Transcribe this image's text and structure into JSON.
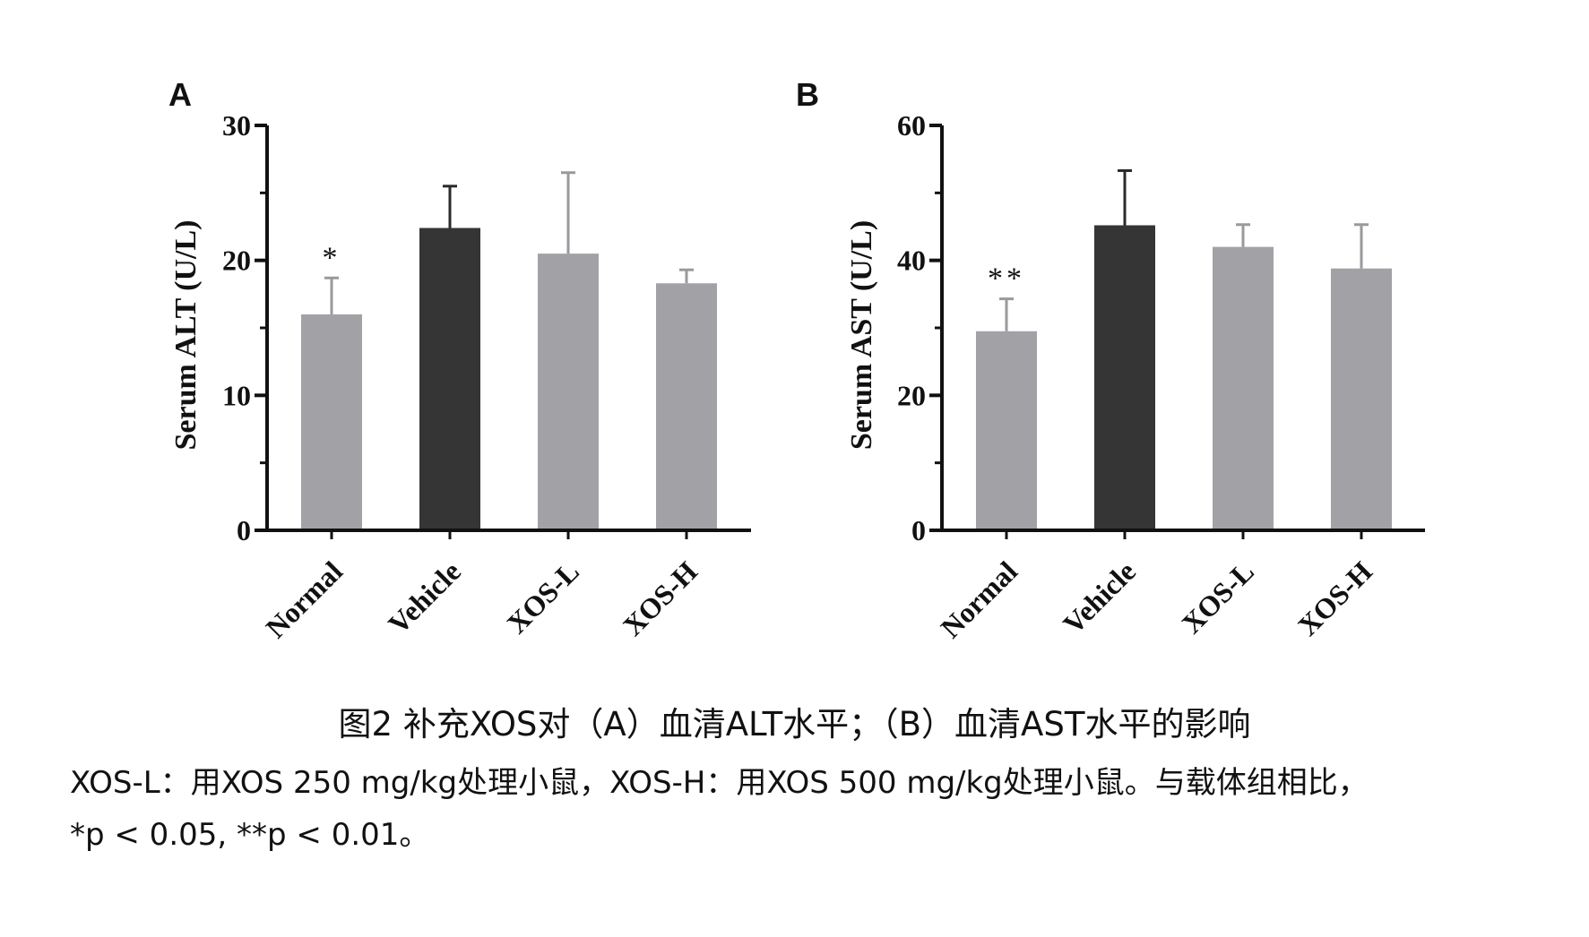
{
  "chart_data": [
    {
      "type": "bar",
      "panel": "A",
      "ylabel": "Serum ALT (U/L)",
      "ylim": [
        0,
        30
      ],
      "yticks": [
        0,
        10,
        20,
        30
      ],
      "categories": [
        "Normal",
        "Vehicle",
        "XOS-L",
        "XOS-H"
      ],
      "values": [
        16.0,
        22.4,
        20.5,
        18.3
      ],
      "errors": [
        2.7,
        3.1,
        6.0,
        1.0
      ],
      "significance": [
        "*",
        "",
        "",
        ""
      ],
      "bar_colors": [
        "#a2a2a6",
        "#353535",
        "#a2a2a6",
        "#a2a2a6"
      ]
    },
    {
      "type": "bar",
      "panel": "B",
      "ylabel": "Serum AST (U/L)",
      "ylim": [
        0,
        60
      ],
      "yticks": [
        0,
        20,
        40,
        60
      ],
      "categories": [
        "Normal",
        "Vehicle",
        "XOS-L",
        "XOS-H"
      ],
      "values": [
        29.5,
        45.2,
        42.0,
        38.8
      ],
      "errors": [
        4.8,
        8.1,
        3.3,
        6.5
      ],
      "significance": [
        "**",
        "",
        "",
        ""
      ],
      "bar_colors": [
        "#a2a2a6",
        "#353535",
        "#a2a2a6",
        "#a2a2a6"
      ]
    }
  ],
  "caption": {
    "title": "图2 补充XOS对（A）血清ALT水平；（B）血清AST水平的影响",
    "line1": "XOS-L：用XOS 250 mg/kg处理小鼠，XOS-H：用XOS 500 mg/kg处理小鼠。与载体组相比，",
    "line2": "*p < 0.05, **p < 0.01。"
  }
}
